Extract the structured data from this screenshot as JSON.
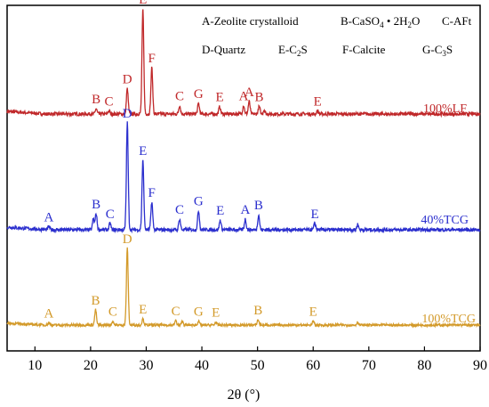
{
  "chart_data": {
    "type": "line",
    "xlabel": "2θ (°)",
    "ylabel": "",
    "xlim": [
      5,
      90
    ],
    "xticks": [
      "10",
      "20",
      "30",
      "40",
      "50",
      "60",
      "70",
      "80",
      "90"
    ],
    "grid": false,
    "legend": {
      "row1": [
        "A-Zeolite crystalloid",
        "B-CaSO",
        "4",
        " • 2H",
        "2",
        "O",
        "C-AFt"
      ],
      "row2": [
        "D-Quartz",
        "E-C",
        "2",
        "S",
        "F-Calcite",
        "G-C",
        "3",
        "S"
      ]
    },
    "series": [
      {
        "name": "100%LF",
        "color": "#c0282a",
        "peaks": [
          {
            "x": 21.0,
            "h": 5,
            "label": "B"
          },
          {
            "x": 23.3,
            "h": 3,
            "label": "C"
          },
          {
            "x": 26.6,
            "h": 24,
            "label": "D"
          },
          {
            "x": 29.4,
            "h": 100,
            "label": "E"
          },
          {
            "x": 31.0,
            "h": 44,
            "label": "F"
          },
          {
            "x": 36.0,
            "h": 8,
            "label": "C"
          },
          {
            "x": 39.4,
            "h": 10,
            "label": "G"
          },
          {
            "x": 43.2,
            "h": 7,
            "label": "E"
          },
          {
            "x": 47.5,
            "h": 8,
            "label": "A"
          },
          {
            "x": 48.5,
            "h": 12,
            "label": "A"
          },
          {
            "x": 50.3,
            "h": 7,
            "label": "B"
          },
          {
            "x": 51.2,
            "h": 4,
            "label": ""
          },
          {
            "x": 60.8,
            "h": 3,
            "label": "E"
          }
        ]
      },
      {
        "name": "40%TCG",
        "color": "#2b2fce",
        "peaks": [
          {
            "x": 12.5,
            "h": 3,
            "label": "A"
          },
          {
            "x": 20.5,
            "h": 10,
            "label": ""
          },
          {
            "x": 21.0,
            "h": 15,
            "label": "B"
          },
          {
            "x": 23.5,
            "h": 6,
            "label": "C"
          },
          {
            "x": 26.6,
            "h": 100,
            "label": "D"
          },
          {
            "x": 29.4,
            "h": 65,
            "label": "E"
          },
          {
            "x": 31.0,
            "h": 26,
            "label": "F"
          },
          {
            "x": 36.0,
            "h": 10,
            "label": "C"
          },
          {
            "x": 39.4,
            "h": 18,
            "label": "G"
          },
          {
            "x": 43.3,
            "h": 9,
            "label": "E"
          },
          {
            "x": 47.8,
            "h": 10,
            "label": "A"
          },
          {
            "x": 50.2,
            "h": 14,
            "label": "B"
          },
          {
            "x": 60.3,
            "h": 6,
            "label": "E"
          },
          {
            "x": 68.0,
            "h": 5,
            "label": ""
          }
        ]
      },
      {
        "name": "100%TCG",
        "color": "#d39a2a",
        "peaks": [
          {
            "x": 12.5,
            "h": 3,
            "label": "A"
          },
          {
            "x": 20.9,
            "h": 20,
            "label": "B"
          },
          {
            "x": 24.0,
            "h": 5,
            "label": "C"
          },
          {
            "x": 26.6,
            "h": 100,
            "label": "D"
          },
          {
            "x": 29.4,
            "h": 8,
            "label": "E"
          },
          {
            "x": 35.3,
            "h": 6,
            "label": "C"
          },
          {
            "x": 36.5,
            "h": 5,
            "label": ""
          },
          {
            "x": 39.4,
            "h": 5,
            "label": "G"
          },
          {
            "x": 42.5,
            "h": 4,
            "label": "E"
          },
          {
            "x": 50.1,
            "h": 7,
            "label": "B"
          },
          {
            "x": 60.0,
            "h": 5,
            "label": "E"
          },
          {
            "x": 68.0,
            "h": 4,
            "label": ""
          }
        ]
      }
    ]
  }
}
